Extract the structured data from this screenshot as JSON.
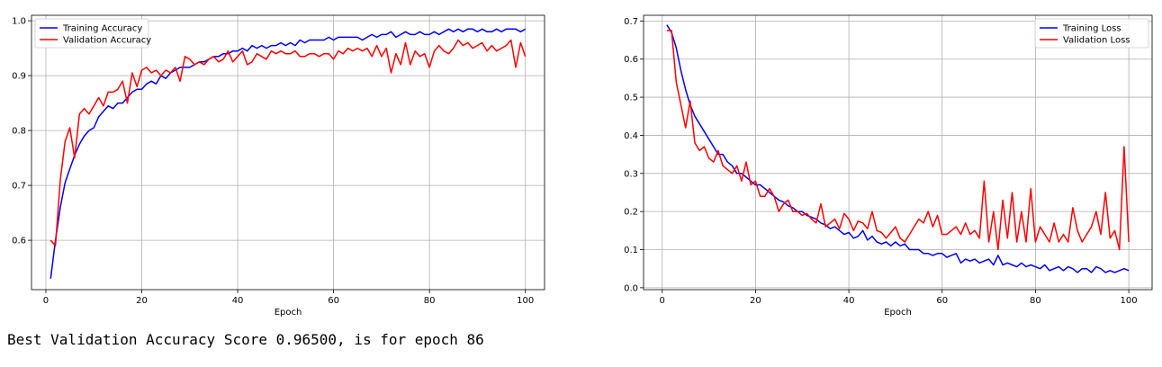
{
  "output_text": "Best Validation Accuracy Score 0.96500, is for epoch 86",
  "chart_data": [
    {
      "type": "line",
      "xlabel": "Epoch",
      "ylabel": "",
      "xlim": [
        -3,
        104
      ],
      "ylim": [
        0.51,
        1.01
      ],
      "xticks": [
        0,
        20,
        40,
        60,
        80,
        100
      ],
      "yticks": [
        0.6,
        0.7,
        0.8,
        0.9,
        1.0
      ],
      "ytick_labels": [
        "0.6",
        "0.7",
        "0.8",
        "0.9",
        "1.0"
      ],
      "grid": true,
      "legend_position": "top-left",
      "x": [
        1,
        2,
        3,
        4,
        5,
        6,
        7,
        8,
        9,
        10,
        11,
        12,
        13,
        14,
        15,
        16,
        17,
        18,
        19,
        20,
        21,
        22,
        23,
        24,
        25,
        26,
        27,
        28,
        29,
        30,
        31,
        32,
        33,
        34,
        35,
        36,
        37,
        38,
        39,
        40,
        41,
        42,
        43,
        44,
        45,
        46,
        47,
        48,
        49,
        50,
        51,
        52,
        53,
        54,
        55,
        56,
        57,
        58,
        59,
        60,
        61,
        62,
        63,
        64,
        65,
        66,
        67,
        68,
        69,
        70,
        71,
        72,
        73,
        74,
        75,
        76,
        77,
        78,
        79,
        80,
        81,
        82,
        83,
        84,
        85,
        86,
        87,
        88,
        89,
        90,
        91,
        92,
        93,
        94,
        95,
        96,
        97,
        98,
        99,
        100
      ],
      "series": [
        {
          "name": "Training Accuracy",
          "color": "#0000ff",
          "values": [
            0.53,
            0.6,
            0.66,
            0.705,
            0.73,
            0.755,
            0.775,
            0.79,
            0.8,
            0.805,
            0.825,
            0.835,
            0.845,
            0.84,
            0.85,
            0.85,
            0.86,
            0.87,
            0.875,
            0.875,
            0.885,
            0.89,
            0.885,
            0.9,
            0.895,
            0.905,
            0.91,
            0.915,
            0.915,
            0.915,
            0.92,
            0.925,
            0.925,
            0.93,
            0.935,
            0.935,
            0.94,
            0.94,
            0.945,
            0.945,
            0.95,
            0.945,
            0.955,
            0.95,
            0.955,
            0.95,
            0.955,
            0.955,
            0.96,
            0.955,
            0.96,
            0.955,
            0.965,
            0.96,
            0.965,
            0.965,
            0.965,
            0.965,
            0.97,
            0.965,
            0.97,
            0.97,
            0.97,
            0.97,
            0.97,
            0.965,
            0.97,
            0.975,
            0.97,
            0.975,
            0.975,
            0.98,
            0.97,
            0.975,
            0.98,
            0.975,
            0.975,
            0.98,
            0.975,
            0.975,
            0.98,
            0.975,
            0.98,
            0.985,
            0.98,
            0.985,
            0.98,
            0.985,
            0.985,
            0.98,
            0.985,
            0.98,
            0.98,
            0.985,
            0.98,
            0.985,
            0.985,
            0.985,
            0.98,
            0.985
          ]
        },
        {
          "name": "Validation Accuracy",
          "color": "#ff0000",
          "values": [
            0.6,
            0.59,
            0.71,
            0.78,
            0.805,
            0.75,
            0.83,
            0.84,
            0.83,
            0.845,
            0.86,
            0.845,
            0.87,
            0.87,
            0.875,
            0.89,
            0.85,
            0.905,
            0.88,
            0.91,
            0.915,
            0.905,
            0.91,
            0.9,
            0.91,
            0.905,
            0.915,
            0.89,
            0.935,
            0.93,
            0.92,
            0.925,
            0.92,
            0.93,
            0.935,
            0.925,
            0.93,
            0.945,
            0.925,
            0.935,
            0.945,
            0.92,
            0.925,
            0.94,
            0.935,
            0.93,
            0.945,
            0.94,
            0.945,
            0.94,
            0.94,
            0.945,
            0.935,
            0.935,
            0.94,
            0.94,
            0.935,
            0.94,
            0.94,
            0.93,
            0.945,
            0.94,
            0.95,
            0.945,
            0.95,
            0.945,
            0.95,
            0.935,
            0.955,
            0.935,
            0.95,
            0.905,
            0.94,
            0.92,
            0.96,
            0.92,
            0.945,
            0.935,
            0.94,
            0.915,
            0.945,
            0.955,
            0.945,
            0.94,
            0.95,
            0.965,
            0.955,
            0.96,
            0.95,
            0.955,
            0.96,
            0.945,
            0.955,
            0.945,
            0.95,
            0.955,
            0.965,
            0.915,
            0.96,
            0.935
          ]
        }
      ]
    },
    {
      "type": "line",
      "xlabel": "Epoch",
      "ylabel": "",
      "xlim": [
        -4,
        105
      ],
      "ylim": [
        -0.005,
        0.715
      ],
      "xticks": [
        0,
        20,
        40,
        60,
        80,
        100
      ],
      "yticks": [
        0.0,
        0.1,
        0.2,
        0.3,
        0.4,
        0.5,
        0.6,
        0.7
      ],
      "ytick_labels": [
        "0.0",
        "0.1",
        "0.2",
        "0.3",
        "0.4",
        "0.5",
        "0.6",
        "0.7"
      ],
      "grid": true,
      "legend_position": "top-right",
      "x": [
        1,
        2,
        3,
        4,
        5,
        6,
        7,
        8,
        9,
        10,
        11,
        12,
        13,
        14,
        15,
        16,
        17,
        18,
        19,
        20,
        21,
        22,
        23,
        24,
        25,
        26,
        27,
        28,
        29,
        30,
        31,
        32,
        33,
        34,
        35,
        36,
        37,
        38,
        39,
        40,
        41,
        42,
        43,
        44,
        45,
        46,
        47,
        48,
        49,
        50,
        51,
        52,
        53,
        54,
        55,
        56,
        57,
        58,
        59,
        60,
        61,
        62,
        63,
        64,
        65,
        66,
        67,
        68,
        69,
        70,
        71,
        72,
        73,
        74,
        75,
        76,
        77,
        78,
        79,
        80,
        81,
        82,
        83,
        84,
        85,
        86,
        87,
        88,
        89,
        90,
        91,
        92,
        93,
        94,
        95,
        96,
        97,
        98,
        99,
        100
      ],
      "series": [
        {
          "name": "Training Loss",
          "color": "#0000ff",
          "values": [
            0.69,
            0.67,
            0.63,
            0.57,
            0.52,
            0.48,
            0.45,
            0.43,
            0.41,
            0.39,
            0.37,
            0.35,
            0.35,
            0.33,
            0.32,
            0.3,
            0.3,
            0.29,
            0.28,
            0.27,
            0.27,
            0.26,
            0.25,
            0.24,
            0.23,
            0.225,
            0.215,
            0.21,
            0.2,
            0.2,
            0.19,
            0.185,
            0.18,
            0.17,
            0.165,
            0.155,
            0.16,
            0.15,
            0.14,
            0.145,
            0.13,
            0.135,
            0.15,
            0.125,
            0.135,
            0.12,
            0.115,
            0.12,
            0.11,
            0.12,
            0.11,
            0.115,
            0.1,
            0.1,
            0.1,
            0.09,
            0.09,
            0.085,
            0.09,
            0.09,
            0.08,
            0.085,
            0.09,
            0.065,
            0.075,
            0.07,
            0.075,
            0.065,
            0.07,
            0.075,
            0.06,
            0.085,
            0.06,
            0.065,
            0.06,
            0.055,
            0.065,
            0.055,
            0.06,
            0.055,
            0.05,
            0.06,
            0.045,
            0.05,
            0.055,
            0.045,
            0.055,
            0.05,
            0.04,
            0.05,
            0.05,
            0.04,
            0.055,
            0.05,
            0.04,
            0.045,
            0.04,
            0.045,
            0.05,
            0.045
          ]
        },
        {
          "name": "Validation Loss",
          "color": "#ff0000",
          "values": [
            0.675,
            0.675,
            0.54,
            0.48,
            0.42,
            0.49,
            0.38,
            0.36,
            0.37,
            0.34,
            0.33,
            0.36,
            0.32,
            0.31,
            0.3,
            0.32,
            0.28,
            0.33,
            0.27,
            0.28,
            0.24,
            0.24,
            0.26,
            0.24,
            0.2,
            0.22,
            0.23,
            0.2,
            0.2,
            0.19,
            0.195,
            0.18,
            0.17,
            0.22,
            0.16,
            0.17,
            0.18,
            0.155,
            0.195,
            0.18,
            0.15,
            0.175,
            0.17,
            0.155,
            0.2,
            0.15,
            0.145,
            0.13,
            0.145,
            0.16,
            0.13,
            0.12,
            0.14,
            0.16,
            0.18,
            0.17,
            0.2,
            0.16,
            0.19,
            0.14,
            0.14,
            0.15,
            0.16,
            0.14,
            0.17,
            0.14,
            0.15,
            0.13,
            0.28,
            0.12,
            0.2,
            0.1,
            0.23,
            0.13,
            0.25,
            0.12,
            0.2,
            0.12,
            0.26,
            0.12,
            0.16,
            0.14,
            0.12,
            0.17,
            0.12,
            0.14,
            0.12,
            0.21,
            0.15,
            0.12,
            0.14,
            0.16,
            0.2,
            0.14,
            0.25,
            0.13,
            0.15,
            0.1,
            0.37,
            0.12
          ]
        }
      ]
    }
  ]
}
